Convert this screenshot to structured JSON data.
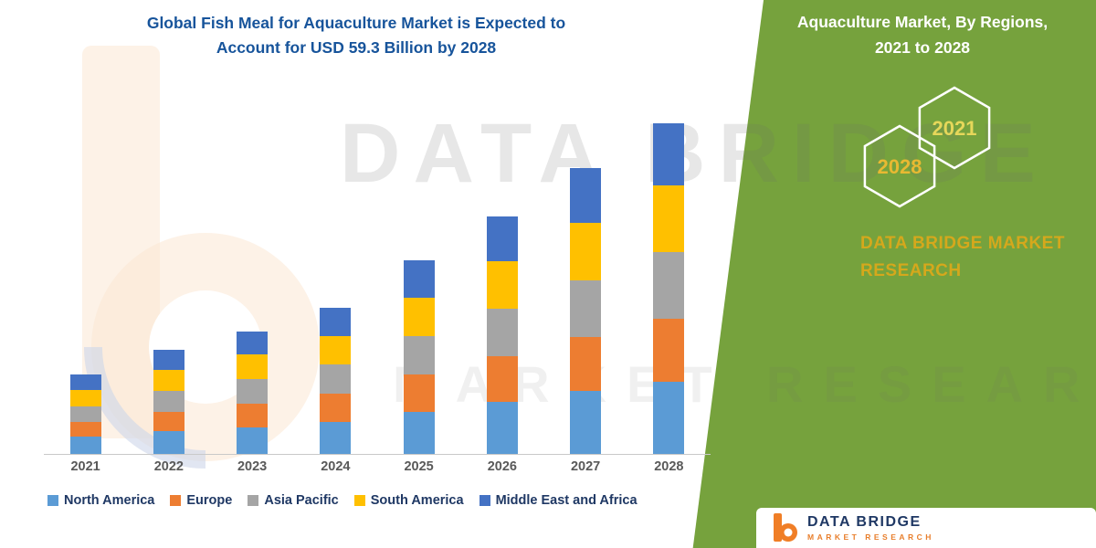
{
  "title": {
    "line1": "Global Fish Meal for Aquaculture Market is Expected to",
    "line2": "Account for USD 59.3 Billion by 2028"
  },
  "side_panel": {
    "heading_line1": "Aquaculture Market, By Regions,",
    "heading_line2": "2021 to 2028",
    "hexagon_left": "2028",
    "hexagon_right": "2021",
    "brand_line1": "DATA BRIDGE MARKET",
    "brand_line2": "RESEARCH",
    "bg_color": "#76A23D",
    "brand_gold": "#D5A81C"
  },
  "watermark": {
    "line1": "DATA BRIDGE",
    "line2": "MARKET RESEARCH"
  },
  "footer_logo": {
    "name": "DATA BRIDGE",
    "tagline": "MARKET RESEARCH"
  },
  "chart_data": {
    "type": "bar",
    "stacked": true,
    "title": "Global Fish Meal for Aquaculture Market is Expected to Account for USD 59.3 Billion by 2028",
    "unit": "USD Billion",
    "categories": [
      "2021",
      "2022",
      "2023",
      "2024",
      "2025",
      "2026",
      "2027",
      "2028"
    ],
    "series": [
      {
        "name": "North America",
        "color": "#5B9BD5",
        "values": [
          3.1,
          4.1,
          4.8,
          5.8,
          7.6,
          9.4,
          11.3,
          13.0
        ]
      },
      {
        "name": "Europe",
        "color": "#ED7D31",
        "values": [
          2.7,
          3.5,
          4.2,
          5.0,
          6.6,
          8.1,
          9.7,
          11.3
        ]
      },
      {
        "name": "Asia Pacific",
        "color": "#A5A5A5",
        "values": [
          2.8,
          3.7,
          4.4,
          5.2,
          6.9,
          8.5,
          10.2,
          11.9
        ]
      },
      {
        "name": "South America",
        "color": "#FFC000",
        "values": [
          2.8,
          3.7,
          4.4,
          5.2,
          6.9,
          8.5,
          10.2,
          11.9
        ]
      },
      {
        "name": "Middle East and Africa",
        "color": "#4472C4",
        "values": [
          2.8,
          3.6,
          4.2,
          5.0,
          6.7,
          8.1,
          9.8,
          11.2
        ]
      }
    ],
    "totals_estimated": [
      14.2,
      18.6,
      22.0,
      26.2,
      34.7,
      42.6,
      51.2,
      59.3
    ],
    "ylim": [
      0,
      60
    ],
    "y_axis_visible": false,
    "gridlines": false,
    "legend_position": "bottom"
  }
}
